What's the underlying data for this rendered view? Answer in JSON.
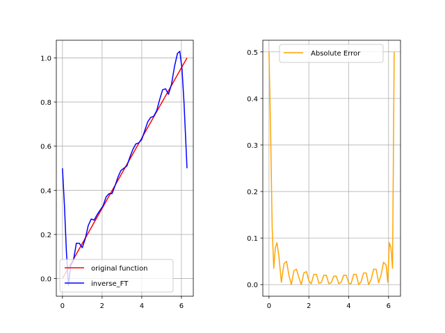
{
  "chart_data": [
    {
      "type": "line",
      "title": "",
      "xlabel": "",
      "ylabel": "",
      "xlim": [
        -0.31,
        6.6
      ],
      "ylim": [
        -0.08,
        1.08
      ],
      "xticks": [
        0,
        2,
        4,
        6
      ],
      "xtick_labels": [
        "0",
        "2",
        "4",
        "6"
      ],
      "yticks": [
        0.0,
        0.2,
        0.4,
        0.6,
        0.8,
        1.0
      ],
      "ytick_labels": [
        "0.0",
        "0.2",
        "0.4",
        "0.6",
        "0.8",
        "1.0"
      ],
      "grid": true,
      "legend_position": "lower-right",
      "series": [
        {
          "name": "original function",
          "color": "#ff0000",
          "x": [
            0.0,
            6.2832
          ],
          "y": [
            0.0,
            1.0
          ]
        },
        {
          "name": "inverse_FT",
          "color": "#0000ff",
          "x": [
            0.0,
            0.1,
            0.2,
            0.3,
            0.42,
            0.55,
            0.7,
            0.85,
            1.0,
            1.15,
            1.3,
            1.45,
            1.6,
            1.75,
            1.9,
            2.05,
            2.2,
            2.35,
            2.5,
            2.65,
            2.8,
            2.95,
            3.1,
            3.25,
            3.4,
            3.55,
            3.7,
            3.85,
            4.0,
            4.15,
            4.3,
            4.45,
            4.6,
            4.75,
            4.9,
            5.05,
            5.2,
            5.35,
            5.5,
            5.65,
            5.8,
            5.92,
            6.03,
            6.13,
            6.2832
          ],
          "y": [
            0.5,
            0.33,
            0.12,
            -0.03,
            0.06,
            0.08,
            0.16,
            0.16,
            0.14,
            0.18,
            0.24,
            0.27,
            0.265,
            0.29,
            0.31,
            0.33,
            0.37,
            0.385,
            0.385,
            0.42,
            0.46,
            0.49,
            0.5,
            0.51,
            0.55,
            0.585,
            0.61,
            0.615,
            0.63,
            0.67,
            0.71,
            0.73,
            0.735,
            0.76,
            0.81,
            0.855,
            0.86,
            0.835,
            0.88,
            0.96,
            1.02,
            1.03,
            0.95,
            0.8,
            0.5
          ]
        }
      ]
    },
    {
      "type": "line",
      "title": "",
      "xlabel": "",
      "ylabel": "",
      "xlim": [
        -0.31,
        6.6
      ],
      "ylim": [
        -0.025,
        0.525
      ],
      "xticks": [
        0,
        2,
        4,
        6
      ],
      "xtick_labels": [
        "0",
        "2",
        "4",
        "6"
      ],
      "yticks": [
        0.0,
        0.1,
        0.2,
        0.3,
        0.4,
        0.5
      ],
      "ytick_labels": [
        "0.0",
        "0.1",
        "0.2",
        "0.3",
        "0.4",
        "0.5"
      ],
      "grid": true,
      "legend_position": "top-right",
      "series": [
        {
          "name": "Absolute Error",
          "color": "#ffa500",
          "x": [
            0.0,
            0.08,
            0.16,
            0.24,
            0.32,
            0.4,
            0.5,
            0.62,
            0.75,
            0.88,
            1.0,
            1.12,
            1.25,
            1.38,
            1.5,
            1.62,
            1.75,
            1.88,
            2.0,
            2.12,
            2.25,
            2.38,
            2.5,
            2.62,
            2.75,
            2.88,
            3.0,
            3.12,
            3.25,
            3.38,
            3.5,
            3.62,
            3.75,
            3.88,
            4.0,
            4.12,
            4.25,
            4.38,
            4.5,
            4.62,
            4.75,
            4.88,
            5.0,
            5.12,
            5.25,
            5.38,
            5.5,
            5.62,
            5.75,
            5.88,
            5.96,
            6.04,
            6.12,
            6.2,
            6.2832
          ],
          "y": [
            0.5,
            0.33,
            0.12,
            0.035,
            0.08,
            0.09,
            0.06,
            0.005,
            0.045,
            0.05,
            0.02,
            0.0,
            0.03,
            0.033,
            0.015,
            0.0,
            0.025,
            0.028,
            0.008,
            0.002,
            0.022,
            0.022,
            0.003,
            0.004,
            0.02,
            0.02,
            0.002,
            0.004,
            0.018,
            0.018,
            0.002,
            0.005,
            0.02,
            0.02,
            0.003,
            0.002,
            0.022,
            0.022,
            0.0,
            0.006,
            0.025,
            0.025,
            0.0,
            0.01,
            0.033,
            0.033,
            0.004,
            0.02,
            0.048,
            0.042,
            0.005,
            0.09,
            0.08,
            0.035,
            0.5
          ]
        }
      ]
    }
  ]
}
